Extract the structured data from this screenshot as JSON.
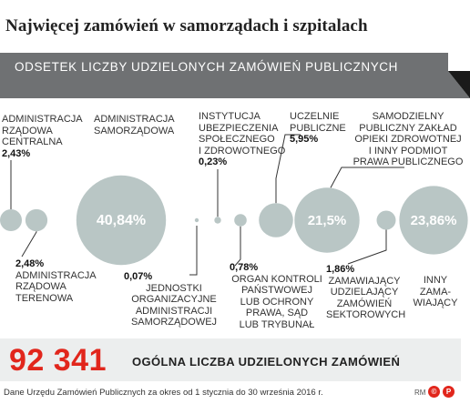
{
  "header": {
    "title": "Najwięcej zamówień w samorządach i szpitalach",
    "subtitle": "ODSETEK LICZBY UDZIELONYCH ZAMÓWIEŃ PUBLICZNYCH"
  },
  "chart_data": {
    "type": "bubble",
    "title": "Najwięcej zamówień w samorządach i szpitalach",
    "subtitle": "ODSETEK LICZBY UDZIELONYCH ZAMÓWIEŃ PUBLICZNYCH",
    "series": [
      {
        "label_lines": [
          "ADMINISTRACJA",
          "RZĄDOWA",
          "CENTRALNA"
        ],
        "value": 2.43,
        "value_text": "2,43%"
      },
      {
        "label_lines": [
          "ADMINISTRACJA",
          "RZĄDOWA",
          "TERENOWA"
        ],
        "value": 2.48,
        "value_text": "2,48%"
      },
      {
        "label_lines": [
          "ADMINISTRACJA",
          "SAMORZĄDOWA"
        ],
        "value": 40.84,
        "value_text": "40,84%"
      },
      {
        "label_lines": [
          "JEDNOSTKI",
          "ORGANIZACYJNE",
          "ADMINISTRACJI",
          "SAMORZĄDOWEJ"
        ],
        "value": 0.07,
        "value_text": "0,07%"
      },
      {
        "label_lines": [
          "INSTYTUCJA",
          "UBEZPIECZENIA",
          "SPOŁECZNEGO",
          "I ZDROWOTNEGO"
        ],
        "value": 0.23,
        "value_text": "0,23%"
      },
      {
        "label_lines": [
          "ORGAN KONTROLI",
          "PAŃSTWOWEJ",
          "LUB OCHRONY",
          "PRAWA, SĄD",
          "LUB TRYBUNAŁ"
        ],
        "value": 0.78,
        "value_text": "0,78%"
      },
      {
        "label_lines": [
          "UCZELNIE",
          "PUBLICZNE"
        ],
        "value": 5.95,
        "value_text": "5,95%"
      },
      {
        "label_lines": [
          "SAMODZIELNY",
          "PUBLICZNY ZAKŁAD",
          "OPIEKI ZDROWOTNEJ",
          "I INNY PODMIOT",
          "PRAWA PUBLICZNEGO"
        ],
        "value": 21.5,
        "value_text": "21,5%"
      },
      {
        "label_lines": [
          "ZAMAWIAJĄCY",
          "UDZIELAJĄCY",
          "ZAMÓWIEŃ",
          "SEKTOROWYCH"
        ],
        "value": 1.86,
        "value_text": "1,86%"
      },
      {
        "label_lines": [
          "INNY",
          "ZAMA-",
          "WIAJĄCY"
        ],
        "value": 23.86,
        "value_text": "23,86%"
      }
    ]
  },
  "total": {
    "value": "92 341",
    "label": "OGÓLNA LICZBA UDZIELONYCH ZAMÓWIEŃ"
  },
  "footer": {
    "source": "Dane Urzędu Zamówień Publicznych za okres od 1 stycznia do 30 września 2016 r.",
    "author": "RM",
    "logos": [
      "©",
      "P"
    ]
  },
  "colors": {
    "bubble": "#b9c6c5",
    "banner": "#6f7173",
    "accent": "#e1261c",
    "line": "#333333"
  }
}
